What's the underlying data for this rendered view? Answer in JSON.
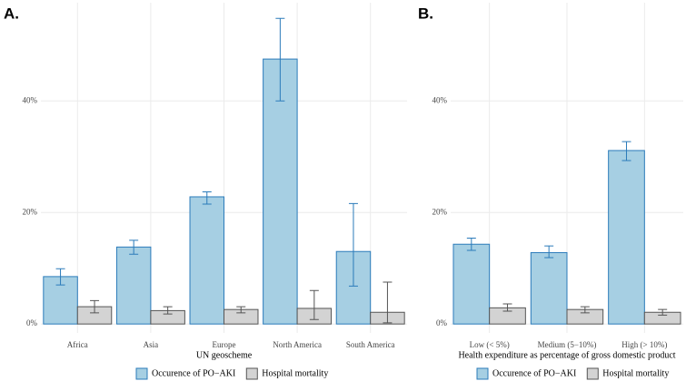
{
  "chart_data": [
    {
      "type": "bar",
      "title": "A.",
      "x_label": "UN geoscheme",
      "categories": [
        "Africa",
        "Asia",
        "Europe",
        "North America",
        "South America"
      ],
      "series": [
        {
          "name": "Occurence of PO−AKI",
          "color": "#a6cfe3",
          "edge": "#2b7bba",
          "values": [
            8.5,
            13.8,
            22.8,
            47.5,
            13.0
          ],
          "errors_low": [
            7.0,
            12.5,
            21.5,
            40.0,
            6.8
          ],
          "errors_high": [
            9.9,
            15.0,
            23.7,
            54.8,
            21.6
          ]
        },
        {
          "name": "Hospital mortality",
          "color": "#d3d3d3",
          "edge": "#555555",
          "values": [
            3.1,
            2.4,
            2.6,
            2.8,
            2.1
          ],
          "errors_low": [
            2.0,
            1.8,
            2.0,
            0.8,
            0.2
          ],
          "errors_high": [
            4.2,
            3.1,
            3.1,
            6.0,
            7.5
          ]
        }
      ],
      "ylim": [
        -1.6,
        57.6
      ],
      "yticks": [
        {
          "value": 0,
          "label": "0%"
        },
        {
          "value": 20,
          "label": "20%"
        },
        {
          "value": 40,
          "label": "40%"
        }
      ],
      "grid": true
    },
    {
      "type": "bar",
      "title": "B.",
      "x_label": "Health expenditure as percentage of gross domestic product",
      "categories": [
        "Low (< 5%)",
        "Medium (5−10%)",
        "High (> 10%)"
      ],
      "series": [
        {
          "name": "Occurence of PO−AKI",
          "color": "#a6cfe3",
          "edge": "#2b7bba",
          "values": [
            14.3,
            12.8,
            31.1
          ],
          "errors_low": [
            13.2,
            11.9,
            29.3
          ],
          "errors_high": [
            15.4,
            14.0,
            32.7
          ]
        },
        {
          "name": "Hospital mortality",
          "color": "#d3d3d3",
          "edge": "#555555",
          "values": [
            2.9,
            2.6,
            2.1
          ],
          "errors_low": [
            2.3,
            2.0,
            1.6
          ],
          "errors_high": [
            3.6,
            3.1,
            2.6
          ]
        }
      ],
      "ylim": [
        -1.6,
        57.6
      ],
      "yticks": [
        {
          "value": 0,
          "label": "0%"
        },
        {
          "value": 20,
          "label": "20%"
        },
        {
          "value": 40,
          "label": "40%"
        }
      ],
      "grid": true
    }
  ]
}
